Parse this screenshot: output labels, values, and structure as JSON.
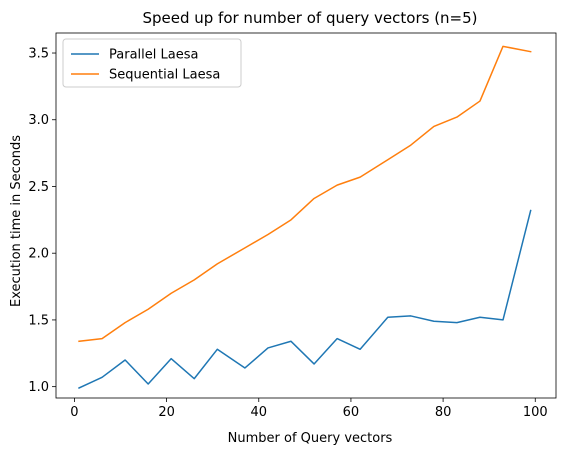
{
  "chart_data": {
    "type": "line",
    "title": "Speed up for number of query vectors (n=5)",
    "xlabel": "Number of Query vectors",
    "ylabel": "Execution time in Seconds",
    "xlim": [
      -4,
      104.5
    ],
    "ylim": [
      0.915,
      3.65
    ],
    "xticks": [
      0,
      20,
      40,
      60,
      80,
      100
    ],
    "xtick_labels": [
      "0",
      "20",
      "40",
      "60",
      "80",
      "100"
    ],
    "yticks": [
      1.0,
      1.5,
      2.0,
      2.5,
      3.0,
      3.5
    ],
    "ytick_labels": [
      "1.0",
      "1.5",
      "2.0",
      "2.5",
      "3.0",
      "3.5"
    ],
    "grid": false,
    "legend_position": "top-left",
    "x": [
      1,
      6,
      11,
      16,
      21,
      26,
      31,
      37,
      42,
      47,
      52,
      57,
      62,
      68,
      73,
      78,
      83,
      88,
      93,
      99
    ],
    "series": [
      {
        "name": "Parallel Laesa",
        "color": "#1f77b4",
        "values": [
          0.99,
          1.07,
          1.2,
          1.02,
          1.21,
          1.06,
          1.28,
          1.14,
          1.29,
          1.34,
          1.17,
          1.36,
          1.28,
          1.52,
          1.53,
          1.49,
          1.48,
          1.52,
          1.5,
          2.32
        ]
      },
      {
        "name": "Sequential Laesa",
        "color": "#ff7f0e",
        "values": [
          1.34,
          1.36,
          1.48,
          1.58,
          1.7,
          1.8,
          1.92,
          2.04,
          2.14,
          2.25,
          2.41,
          2.51,
          2.57,
          2.7,
          2.81,
          2.95,
          3.02,
          3.14,
          3.55,
          3.51
        ]
      }
    ]
  }
}
